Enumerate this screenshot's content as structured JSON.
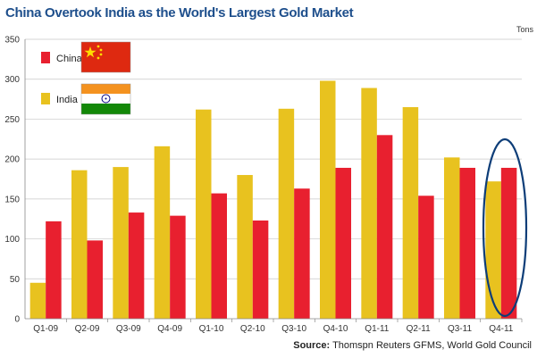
{
  "title": "China Overtook India as the World's Largest Gold Market",
  "source": {
    "label": "Source:",
    "text": "Thomspn Reuters GFMS, World Gold Council"
  },
  "chart_data": {
    "type": "bar",
    "title": "China Overtook India as the World's Largest Gold Market",
    "ylabel": "Tons",
    "ylim": [
      0,
      350
    ],
    "yticks": [
      0,
      50,
      100,
      150,
      200,
      250,
      300,
      350
    ],
    "grid": true,
    "categories": [
      "Q1-09",
      "Q2-09",
      "Q3-09",
      "Q4-09",
      "Q1-10",
      "Q2-10",
      "Q3-10",
      "Q4-10",
      "Q1-11",
      "Q2-11",
      "Q3-11",
      "Q4-11"
    ],
    "series": [
      {
        "name": "India",
        "color": "#e8c21f",
        "values": [
          45,
          186,
          190,
          216,
          262,
          180,
          263,
          298,
          289,
          265,
          202,
          172
        ]
      },
      {
        "name": "China",
        "color": "#e8202f",
        "values": [
          122,
          98,
          133,
          129,
          157,
          123,
          163,
          189,
          230,
          154,
          189,
          189
        ]
      }
    ],
    "legend": [
      {
        "name": "China",
        "flag": "china-flag"
      },
      {
        "name": "India",
        "flag": "india-flag"
      }
    ],
    "annotation": {
      "shape": "ellipse",
      "color": "#0d3d78",
      "highlight_category": "Q4-11"
    }
  }
}
